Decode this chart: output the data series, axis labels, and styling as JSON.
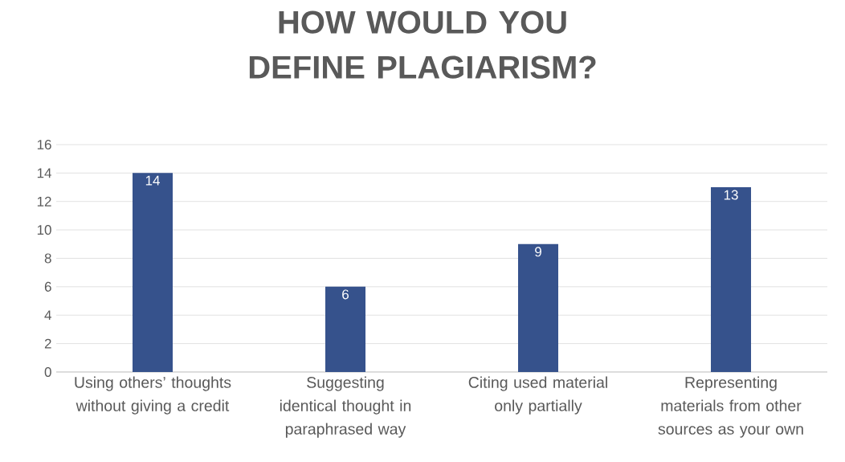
{
  "chart_data": {
    "type": "bar",
    "title": "HOW WOULD YOU DEFINE PLAGIARISM?",
    "categories": [
      "Using others’ thoughts without giving a credit",
      "Suggesting identical thought in paraphrased way",
      "Citing used material only partially",
      "Representing materials from other sources as your own"
    ],
    "values": [
      14,
      6,
      9,
      13
    ],
    "color": "#36528c",
    "ylim": [
      0,
      16
    ],
    "yticks": [
      0,
      2,
      4,
      6,
      8,
      10,
      12,
      14,
      16
    ],
    "grid": "y",
    "data_labels": true
  }
}
